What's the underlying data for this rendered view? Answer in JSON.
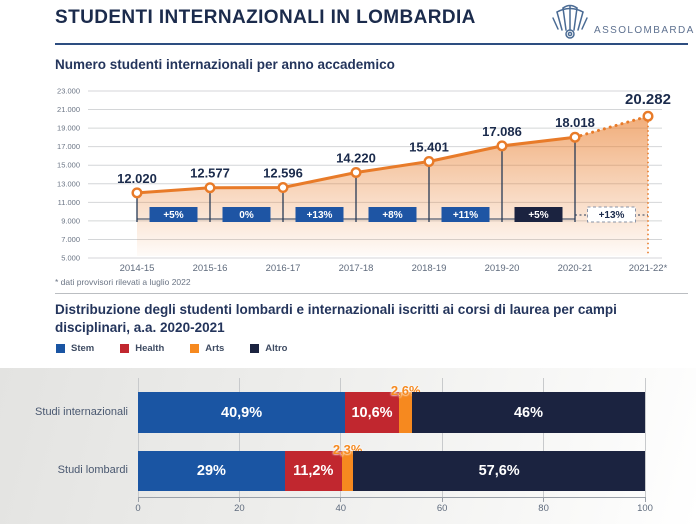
{
  "header": {
    "title": "STUDENTI INTERNAZIONALI IN LOMBARDIA",
    "logo_text": "ASSOLOMBARDA"
  },
  "line_section": {
    "subtitle": "Numero studenti internazionali per anno accademico",
    "footnote": "* dati provvisori rilevati a luglio 2022"
  },
  "bar_section": {
    "title": "Distribuzione degli studenti lombardi e internazionali iscritti ai corsi di laurea per campi disciplinari, a.a. 2020-2021"
  },
  "colors": {
    "navy_text": "#1b2b4c",
    "line_orange": "#e87b29",
    "badge_blue": "#1e55a4",
    "badge_navy": "#1b2340",
    "tick_grey": "#5f6b7d",
    "grid_grey": "#d4d6d8"
  },
  "chart_data": [
    {
      "type": "area",
      "title": "Numero studenti internazionali per anno accademico",
      "categories": [
        "2014-15",
        "2015-16",
        "2016-17",
        "2017-18",
        "2018-19",
        "2019-20",
        "2020-21",
        "2021-22*"
      ],
      "values": [
        12020,
        12577,
        12596,
        14220,
        15401,
        17086,
        18018,
        20282
      ],
      "value_labels": [
        "12.020",
        "12.577",
        "12.596",
        "14.220",
        "15.401",
        "17.086",
        "18.018",
        "20.282"
      ],
      "growth_badges": [
        {
          "label": "+5%",
          "style": "blue"
        },
        {
          "label": "0%",
          "style": "blue"
        },
        {
          "label": "+13%",
          "style": "blue"
        },
        {
          "label": "+8%",
          "style": "blue"
        },
        {
          "label": "+11%",
          "style": "blue"
        },
        {
          "label": "+5%",
          "style": "navy"
        },
        {
          "label": "+13%",
          "style": "dashed"
        }
      ],
      "ylim": [
        5000,
        23000
      ],
      "yticks": [
        {
          "value": 5000,
          "label": "5.000"
        },
        {
          "value": 7000,
          "label": "7.000"
        },
        {
          "value": 9000,
          "label": "9.000"
        },
        {
          "value": 11000,
          "label": "11.000"
        },
        {
          "value": 13000,
          "label": "13.000"
        },
        {
          "value": 15000,
          "label": "15.000"
        },
        {
          "value": 17000,
          "label": "17.000"
        },
        {
          "value": 19000,
          "label": "19.000"
        },
        {
          "value": 21000,
          "label": "21.000"
        },
        {
          "value": 23000,
          "label": "23.000"
        }
      ],
      "grid": true,
      "last_segment_dotted": true,
      "line_color": "#e87b29"
    },
    {
      "type": "bar",
      "orientation": "horizontal",
      "stacked": true,
      "title": "Distribuzione degli studenti lombardi e internazionali iscritti ai corsi di laurea per campi disciplinari, a.a. 2020-2021",
      "categories": [
        "Studi internazionali",
        "Studi lombardi"
      ],
      "series": [
        {
          "name": "Stem",
          "color": "#1a55a3",
          "values": [
            40.9,
            29.0
          ],
          "labels": [
            "40,9%",
            "29%"
          ],
          "label_position": "inside"
        },
        {
          "name": "Health",
          "color": "#c1272f",
          "values": [
            10.6,
            11.2
          ],
          "labels": [
            "10,6%",
            "11,2%"
          ],
          "label_position": "inside"
        },
        {
          "name": "Arts",
          "color": "#f6891f",
          "values": [
            2.6,
            2.3
          ],
          "labels": [
            "2,6%",
            "2,3%"
          ],
          "label_position": "above"
        },
        {
          "name": "Altro",
          "color": "#1b2340",
          "values": [
            46.0,
            57.6
          ],
          "labels": [
            "46%",
            "57,6%"
          ],
          "label_position": "inside"
        }
      ],
      "xlim": [
        0,
        100
      ],
      "xticks": [
        {
          "value": 0,
          "label": "0"
        },
        {
          "value": 20,
          "label": "20"
        },
        {
          "value": 40,
          "label": "40"
        },
        {
          "value": 60,
          "label": "60"
        },
        {
          "value": 80,
          "label": "80"
        },
        {
          "value": 100,
          "label": "100"
        }
      ],
      "grid": true,
      "legend_position": "top"
    }
  ]
}
